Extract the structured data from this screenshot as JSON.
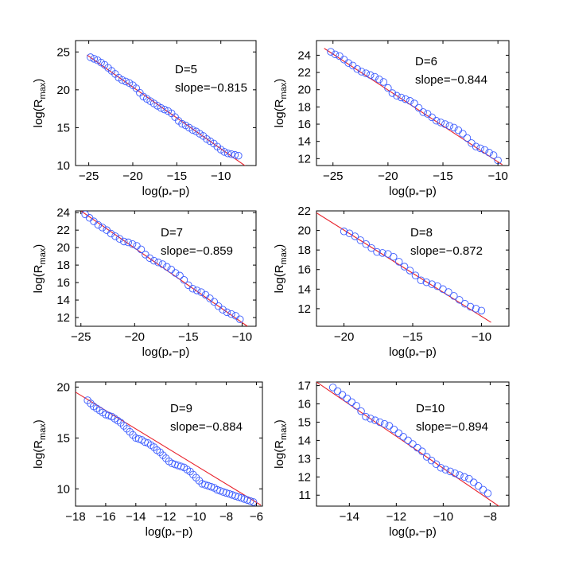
{
  "chart_data": [
    {
      "type": "scatter",
      "title": "",
      "annotation": {
        "label": "D=5",
        "slope_text": "slope=−0.815"
      },
      "xlabel": "log(p*−p)",
      "ylabel": "log(R_max)",
      "xlim": [
        -26.5,
        -6
      ],
      "ylim": [
        10,
        26.5
      ],
      "xticks": [
        -25,
        -20,
        -15,
        -10
      ],
      "yticks": [
        10,
        15,
        20,
        25
      ],
      "grid": false,
      "fit": {
        "slope": -0.815,
        "x": [
          -25.2,
          -6.3
        ],
        "y": [
          24.6,
          9.2
        ]
      },
      "series": [
        {
          "type": "points",
          "x": [
            -24.8,
            -24.4,
            -24.0,
            -23.6,
            -23.2,
            -22.8,
            -22.4,
            -22.0,
            -21.6,
            -21.2,
            -20.8,
            -20.4,
            -20.0,
            -19.6,
            -19.2,
            -18.8,
            -18.4,
            -18.0,
            -17.6,
            -17.2,
            -16.8,
            -16.4,
            -16.0,
            -15.6,
            -15.2,
            -14.8,
            -14.4,
            -14.0,
            -13.6,
            -13.2,
            -12.8,
            -12.4,
            -12.0,
            -11.6,
            -11.2,
            -10.8,
            -10.4,
            -10.0,
            -9.6,
            -9.2,
            -8.8,
            -8.4,
            -8.0
          ],
          "y": [
            24.3,
            24.1,
            23.9,
            23.6,
            23.3,
            22.9,
            22.5,
            22.1,
            21.6,
            21.3,
            21.1,
            20.9,
            20.6,
            20.2,
            19.6,
            19.1,
            18.8,
            18.5,
            18.2,
            17.9,
            17.6,
            17.4,
            17.2,
            16.9,
            16.4,
            15.9,
            15.5,
            15.3,
            15.0,
            14.7,
            14.5,
            14.2,
            13.9,
            13.5,
            13.2,
            12.9,
            12.5,
            12.1,
            11.8,
            11.6,
            11.5,
            11.4,
            11.3
          ]
        }
      ]
    },
    {
      "type": "scatter",
      "title": "",
      "annotation": {
        "label": "D=6",
        "slope_text": "slope=−0.844"
      },
      "xlabel": "log(p*−p)",
      "ylabel": "log(R_max)",
      "xlim": [
        -26.5,
        -9
      ],
      "ylim": [
        11.2,
        25.7
      ],
      "xticks": [
        -25,
        -20,
        -15,
        -10
      ],
      "yticks": [
        12,
        14,
        16,
        18,
        20,
        22,
        24
      ],
      "grid": false,
      "fit": {
        "slope": -0.844,
        "x": [
          -25.8,
          -9.6
        ],
        "y": [
          24.8,
          11.3
        ]
      },
      "series": [
        {
          "type": "points",
          "x": [
            -25.2,
            -24.8,
            -24.4,
            -24.0,
            -23.6,
            -23.2,
            -22.8,
            -22.4,
            -22.0,
            -21.6,
            -21.2,
            -20.8,
            -20.4,
            -20.0,
            -19.6,
            -19.2,
            -18.8,
            -18.4,
            -18.0,
            -17.6,
            -17.2,
            -16.8,
            -16.4,
            -16.0,
            -15.6,
            -15.2,
            -14.8,
            -14.4,
            -14.0,
            -13.6,
            -13.2,
            -12.8,
            -12.4,
            -12.0,
            -11.6,
            -11.2,
            -10.8,
            -10.4,
            -10.0
          ],
          "y": [
            24.4,
            24.1,
            23.9,
            23.5,
            23.1,
            22.8,
            22.4,
            22.1,
            21.9,
            21.7,
            21.5,
            21.2,
            20.9,
            20.2,
            19.6,
            19.3,
            19.1,
            18.9,
            18.7,
            18.4,
            17.9,
            17.4,
            17.2,
            16.8,
            16.4,
            16.2,
            16.0,
            15.8,
            15.6,
            15.3,
            14.9,
            14.4,
            13.8,
            13.4,
            13.2,
            13.0,
            12.7,
            12.4,
            11.8
          ]
        }
      ]
    },
    {
      "type": "scatter",
      "title": "",
      "annotation": {
        "label": "D=7",
        "slope_text": "slope=−0.859"
      },
      "xlabel": "log(p*−p)",
      "ylabel": "log(R_max)",
      "xlim": [
        -25.5,
        -8.7
      ],
      "ylim": [
        11,
        24.2
      ],
      "xticks": [
        -25,
        -20,
        -15,
        -10
      ],
      "yticks": [
        12,
        14,
        16,
        18,
        20,
        22,
        24
      ],
      "grid": false,
      "fit": {
        "slope": -0.859,
        "x": [
          -25.0,
          -9.5
        ],
        "y": [
          24.2,
          11.0
        ]
      },
      "series": [
        {
          "type": "points",
          "x": [
            -24.6,
            -24.2,
            -23.8,
            -23.4,
            -23.0,
            -22.6,
            -22.2,
            -21.8,
            -21.4,
            -21.0,
            -20.6,
            -20.2,
            -19.8,
            -19.4,
            -19.0,
            -18.6,
            -18.2,
            -17.8,
            -17.4,
            -17.0,
            -16.6,
            -16.2,
            -15.8,
            -15.4,
            -15.0,
            -14.6,
            -14.2,
            -13.8,
            -13.4,
            -13.0,
            -12.6,
            -12.2,
            -11.8,
            -11.4,
            -11.0,
            -10.6,
            -10.2
          ],
          "y": [
            23.8,
            23.4,
            23.0,
            22.6,
            22.3,
            22.0,
            21.6,
            21.3,
            21.0,
            20.7,
            20.6,
            20.4,
            20.2,
            19.8,
            19.2,
            18.8,
            18.5,
            18.3,
            18.1,
            17.8,
            17.5,
            17.1,
            16.8,
            16.3,
            15.7,
            15.3,
            15.1,
            14.9,
            14.6,
            14.2,
            13.8,
            13.3,
            12.9,
            12.6,
            12.4,
            12.2,
            11.8
          ]
        }
      ]
    },
    {
      "type": "scatter",
      "title": "",
      "annotation": {
        "label": "D=8",
        "slope_text": "slope=−0.872"
      },
      "xlabel": "log(p*−p)",
      "ylabel": "log(R_max)",
      "xlim": [
        -22,
        -8
      ],
      "ylim": [
        10.2,
        22
      ],
      "xticks": [
        -20,
        -15,
        -10
      ],
      "yticks": [
        12,
        14,
        16,
        18,
        20,
        22
      ],
      "grid": false,
      "fit": {
        "slope": -0.872,
        "x": [
          -22.0,
          -9.3
        ],
        "y": [
          21.8,
          10.6
        ]
      },
      "series": [
        {
          "type": "points",
          "x": [
            -20.0,
            -19.6,
            -19.2,
            -18.8,
            -18.4,
            -18.0,
            -17.6,
            -17.2,
            -16.8,
            -16.4,
            -16.0,
            -15.6,
            -15.2,
            -14.8,
            -14.4,
            -14.0,
            -13.6,
            -13.2,
            -12.8,
            -12.4,
            -12.0,
            -11.6,
            -11.2,
            -10.8,
            -10.4,
            -10.0
          ],
          "y": [
            19.9,
            19.7,
            19.4,
            19.0,
            18.6,
            18.2,
            17.8,
            17.7,
            17.6,
            17.3,
            16.8,
            16.3,
            15.9,
            15.4,
            14.9,
            14.7,
            14.5,
            14.3,
            14.0,
            13.7,
            13.3,
            12.9,
            12.5,
            12.2,
            12.0,
            11.8
          ]
        }
      ]
    },
    {
      "type": "scatter",
      "title": "",
      "annotation": {
        "label": "D=9",
        "slope_text": "slope=−0.884"
      },
      "xlabel": "log(p*−p)",
      "ylabel": "log(R_max)",
      "xlim": [
        -18,
        -5.6
      ],
      "ylim": [
        8.3,
        20.5
      ],
      "xticks": [
        -18,
        -16,
        -14,
        -12,
        -10,
        -8,
        -6
      ],
      "yticks": [
        10,
        15,
        20
      ],
      "grid": false,
      "fit": {
        "slope": -0.884,
        "x": [
          -18.0,
          -5.7
        ],
        "y": [
          19.5,
          8.4
        ]
      },
      "series": [
        {
          "type": "points",
          "x": [
            -17.2,
            -17.0,
            -16.8,
            -16.6,
            -16.4,
            -16.2,
            -16.0,
            -15.8,
            -15.6,
            -15.4,
            -15.2,
            -15.0,
            -14.8,
            -14.6,
            -14.4,
            -14.2,
            -14.0,
            -13.8,
            -13.6,
            -13.4,
            -13.2,
            -13.0,
            -12.8,
            -12.6,
            -12.4,
            -12.2,
            -12.0,
            -11.8,
            -11.6,
            -11.4,
            -11.2,
            -11.0,
            -10.8,
            -10.6,
            -10.4,
            -10.2,
            -10.0,
            -9.8,
            -9.6,
            -9.4,
            -9.2,
            -9.0,
            -8.8,
            -8.6,
            -8.4,
            -8.2,
            -8.0,
            -7.8,
            -7.6,
            -7.4,
            -7.2,
            -7.0,
            -6.8,
            -6.6,
            -6.4,
            -6.2
          ],
          "y": [
            18.7,
            18.4,
            18.1,
            17.9,
            17.7,
            17.5,
            17.3,
            17.2,
            17.1,
            16.9,
            16.7,
            16.5,
            16.2,
            15.9,
            15.6,
            15.3,
            15.0,
            14.9,
            14.8,
            14.6,
            14.5,
            14.3,
            14.1,
            13.8,
            13.6,
            13.3,
            13.0,
            12.7,
            12.5,
            12.4,
            12.3,
            12.2,
            12.1,
            11.9,
            11.7,
            11.4,
            11.1,
            10.8,
            10.5,
            10.4,
            10.3,
            10.2,
            10.1,
            9.9,
            9.8,
            9.7,
            9.6,
            9.5,
            9.4,
            9.3,
            9.2,
            9.1,
            9.0,
            8.9,
            8.8,
            8.7
          ]
        }
      ]
    },
    {
      "type": "scatter",
      "title": "",
      "annotation": {
        "label": "D=10",
        "slope_text": "slope=−0.894"
      },
      "xlabel": "log(p*−p)",
      "ylabel": "log(R_max)",
      "xlim": [
        -15.4,
        -7.2
      ],
      "ylim": [
        10.4,
        17.2
      ],
      "xticks": [
        -14,
        -12,
        -10,
        -8
      ],
      "yticks": [
        11,
        12,
        13,
        14,
        15,
        16,
        17
      ],
      "grid": false,
      "fit": {
        "slope": -0.894,
        "x": [
          -15.4,
          -7.4
        ],
        "y": [
          17.2,
          10.2
        ]
      },
      "series": [
        {
          "type": "points",
          "x": [
            -14.7,
            -14.5,
            -14.3,
            -14.1,
            -13.9,
            -13.7,
            -13.5,
            -13.3,
            -13.1,
            -12.9,
            -12.7,
            -12.5,
            -12.3,
            -12.1,
            -11.9,
            -11.7,
            -11.5,
            -11.3,
            -11.1,
            -10.9,
            -10.7,
            -10.5,
            -10.3,
            -10.1,
            -9.9,
            -9.7,
            -9.5,
            -9.3,
            -9.1,
            -8.9,
            -8.7,
            -8.5,
            -8.3,
            -8.1
          ],
          "y": [
            16.9,
            16.7,
            16.5,
            16.3,
            16.1,
            15.9,
            15.6,
            15.3,
            15.2,
            15.1,
            15.0,
            14.9,
            14.8,
            14.6,
            14.4,
            14.2,
            14.0,
            13.8,
            13.6,
            13.4,
            13.1,
            12.9,
            12.7,
            12.5,
            12.4,
            12.3,
            12.2,
            12.1,
            12.0,
            11.9,
            11.7,
            11.5,
            11.3,
            11.1
          ]
        }
      ]
    }
  ],
  "colors": {
    "points": "#3a5bff",
    "fit": "#e8202a",
    "axes": "#000000"
  }
}
